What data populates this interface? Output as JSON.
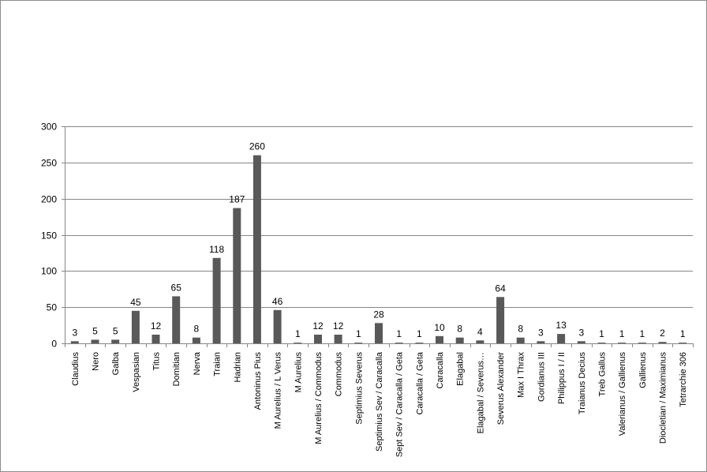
{
  "chart_data": {
    "type": "bar",
    "title": "",
    "xlabel": "",
    "ylabel": "",
    "ylim": [
      0,
      300
    ],
    "yticks": [
      0,
      50,
      100,
      150,
      200,
      250,
      300
    ],
    "ytick_labels": [
      "0",
      "50",
      "100",
      "150",
      "200",
      "250",
      "300"
    ],
    "grid": true,
    "legend": "none",
    "bar_color": "#595959",
    "categories": [
      "Claudius",
      "Nero",
      "Galba",
      "Vespasian",
      "Titus",
      "Domitian",
      "Nerva",
      "Traian",
      "Hadrian",
      "Antoninus Pius",
      "M Aurelius / L Verus",
      "M Aurelius",
      "M Aurelius / Commodus",
      "Commodus",
      "Septimius Severus",
      "Septimius Sev / Caracalla",
      "Sept Sev / Caracalla / Geta",
      "Caracalla / Geta",
      "Caracalla",
      "Elagabal",
      "Elagabal / Severus…",
      "Severus Alexander",
      "Max I Thrax",
      "Gordianus III",
      "Philippus I / II",
      "Traianus Decius",
      "Treb Gallus",
      "Valerianus / Gallienus",
      "Gallienus",
      "Diocletian / Maximianus",
      "Tetrarchie 306"
    ],
    "values": [
      3,
      5,
      5,
      45,
      12,
      65,
      8,
      118,
      187,
      260,
      46,
      1,
      12,
      12,
      1,
      28,
      1,
      1,
      10,
      8,
      4,
      64,
      8,
      3,
      13,
      3,
      1,
      1,
      1,
      2,
      1
    ],
    "data_labels": [
      "3",
      "5",
      "5",
      "45",
      "12",
      "65",
      "8",
      "118",
      "187",
      "260",
      "46",
      "1",
      "12",
      "12",
      "1",
      "28",
      "1",
      "1",
      "10",
      "8",
      "4",
      "64",
      "8",
      "3",
      "13",
      "3",
      "1",
      "1",
      "1",
      "2",
      "1"
    ]
  }
}
